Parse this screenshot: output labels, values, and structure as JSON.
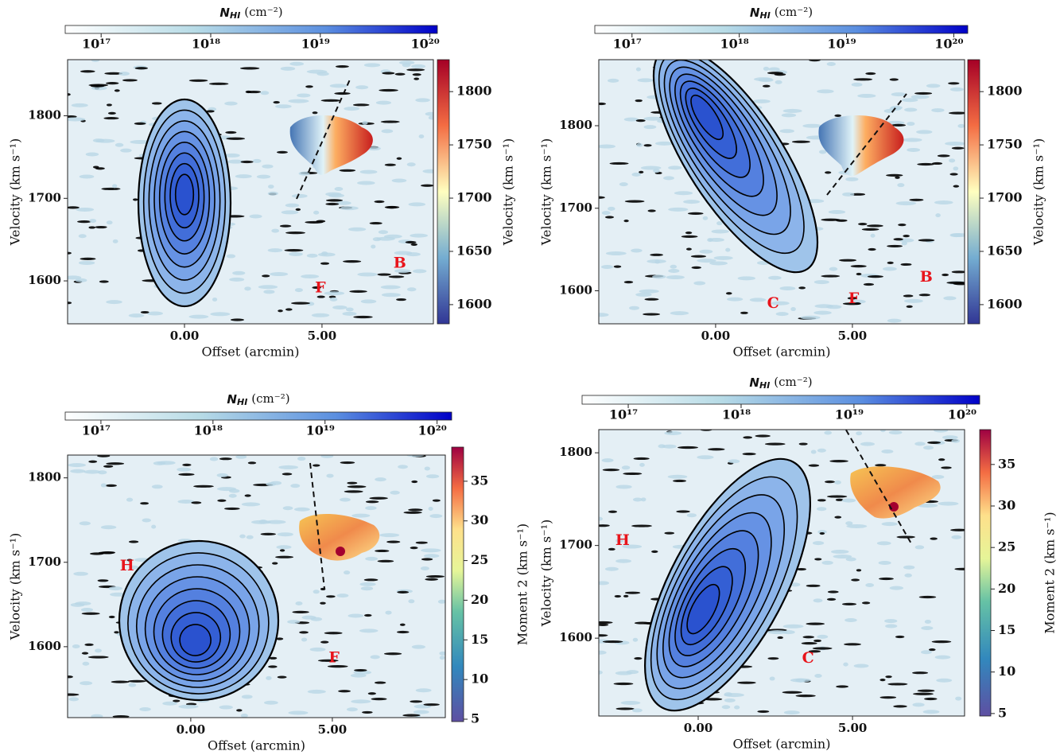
{
  "chart_data": [
    {
      "type": "pv-diagram",
      "xlabel": "Offset (arcmin)",
      "ylabel": "Velocity (km s⁻¹)",
      "xlim": [
        -4.25,
        9.05
      ],
      "ylim": [
        1548,
        1868
      ],
      "xticks": [
        {
          "value": 0,
          "label": "0.00"
        },
        {
          "value": 5,
          "label": "5.00"
        }
      ],
      "yticks": [
        1600,
        1700,
        1800
      ],
      "colorbar_top": {
        "symbol": "N",
        "subscript": "HI",
        "unit": "(cm⁻²)",
        "log": true,
        "lim": [
          4.7e+16,
          1.17e+20
        ],
        "ticks": [
          {
            "value": 1e+17,
            "label": "10¹⁷"
          },
          {
            "value": 1e+18,
            "label": "10¹⁸"
          },
          {
            "value": 1e+19,
            "label": "10¹⁹"
          },
          {
            "value": 1e+20,
            "label": "10²⁰"
          }
        ]
      },
      "colorbar_right": {
        "label": "Velocity (km s⁻¹)",
        "lim": [
          1582,
          1830
        ],
        "ticks": [
          1600,
          1650,
          1700,
          1750,
          1800
        ]
      },
      "annotations": [
        {
          "text": "F",
          "x": 4.94,
          "y": 1591
        },
        {
          "text": "B",
          "x": 7.83,
          "y": 1621
        }
      ],
      "annotation_color": "#e8141b"
    },
    {
      "type": "pv-diagram",
      "xlabel": "Offset (arcmin)",
      "ylabel": "Velocity (km s⁻¹)",
      "xlim": [
        -4.27,
        9.1
      ],
      "ylim": [
        1560,
        1880
      ],
      "xticks": [
        {
          "value": 0,
          "label": "0.00"
        },
        {
          "value": 5,
          "label": "5.00"
        }
      ],
      "yticks": [
        1600,
        1700,
        1800
      ],
      "colorbar_top": {
        "symbol": "N",
        "subscript": "HI",
        "unit": "(cm⁻²)",
        "log": true,
        "lim": [
          4.5e+16,
          1.35e+20
        ],
        "ticks": [
          {
            "value": 1e+17,
            "label": "10¹⁷"
          },
          {
            "value": 1e+18,
            "label": "10¹⁸"
          },
          {
            "value": 1e+19,
            "label": "10¹⁹"
          },
          {
            "value": 1e+20,
            "label": "10²⁰"
          }
        ]
      },
      "colorbar_right": {
        "label": "Velocity (km s⁻¹)",
        "lim": [
          1582,
          1830
        ],
        "ticks": [
          1600,
          1650,
          1700,
          1750,
          1800
        ]
      },
      "annotations": [
        {
          "text": "C",
          "x": 2.1,
          "y": 1584
        },
        {
          "text": "F",
          "x": 5.05,
          "y": 1590
        },
        {
          "text": "B",
          "x": 7.7,
          "y": 1616
        }
      ],
      "annotation_color": "#e8141b"
    },
    {
      "type": "pv-diagram",
      "xlabel": "Offset (arcmin)",
      "ylabel": "Velocity (km s⁻¹)",
      "xlim": [
        -4.35,
        8.99
      ],
      "ylim": [
        1516,
        1827
      ],
      "xticks": [
        {
          "value": 0,
          "label": "0.00"
        },
        {
          "value": 5,
          "label": "5.00"
        }
      ],
      "yticks": [
        1600,
        1700,
        1800
      ],
      "colorbar_top": {
        "symbol": "N",
        "subscript": "HI",
        "unit": "(cm⁻²)",
        "log": true,
        "lim": [
          4.8e+16,
          1.35e+20
        ],
        "ticks": [
          {
            "value": 1e+17,
            "label": "10¹⁷"
          },
          {
            "value": 1e+18,
            "label": "10¹⁸"
          },
          {
            "value": 1e+19,
            "label": "10¹⁹"
          },
          {
            "value": 1e+20,
            "label": "10²⁰"
          }
        ]
      },
      "colorbar_right": {
        "label": "Moment 2 (km s⁻¹)",
        "lim": [
          4.7,
          39.3
        ],
        "ticks": [
          5,
          10,
          15,
          20,
          25,
          30,
          35
        ]
      },
      "annotations": [
        {
          "text": "H",
          "x": -2.25,
          "y": 1695
        },
        {
          "text": "F",
          "x": 5.06,
          "y": 1586
        }
      ],
      "annotation_color": "#e8141b"
    },
    {
      "type": "pv-diagram",
      "xlabel": "Offset (arcmin)",
      "ylabel": "Velocity (km s⁻¹)",
      "xlim": [
        -3.22,
        8.63
      ],
      "ylim": [
        1516,
        1825
      ],
      "xticks": [
        {
          "value": 0,
          "label": "0.00"
        },
        {
          "value": 5,
          "label": "5.00"
        }
      ],
      "yticks": [
        1600,
        1700,
        1800
      ],
      "colorbar_top": {
        "symbol": "N",
        "subscript": "HI",
        "unit": "(cm⁻²)",
        "log": true,
        "lim": [
          3.9e+16,
          1.3e+20
        ],
        "ticks": [
          {
            "value": 1e+17,
            "label": "10¹⁷"
          },
          {
            "value": 1e+18,
            "label": "10¹⁸"
          },
          {
            "value": 1e+19,
            "label": "10¹⁹"
          },
          {
            "value": 1e+20,
            "label": "10²⁰"
          }
        ]
      },
      "colorbar_right": {
        "label": "Moment 2 (km s⁻¹)",
        "lim": [
          4.7,
          39.2
        ],
        "ticks": [
          5,
          10,
          15,
          20,
          25,
          30,
          35
        ]
      },
      "annotations": [
        {
          "text": "H",
          "x": -2.45,
          "y": 1705
        },
        {
          "text": "C",
          "x": 3.56,
          "y": 1578
        }
      ],
      "annotation_color": "#e8141b"
    }
  ]
}
